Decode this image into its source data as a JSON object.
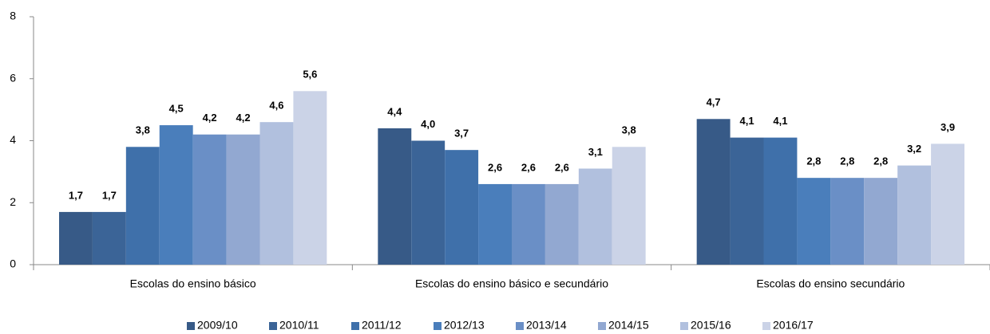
{
  "chart_data": {
    "type": "bar",
    "categories": [
      "Escolas do ensino básico",
      "Escolas do ensino básico e secundário",
      "Escolas do ensino secundário"
    ],
    "series": [
      {
        "name": "2009/10",
        "color": "#375a87",
        "values": [
          1.7,
          4.4,
          4.7
        ],
        "value_labels": [
          "1,7",
          "4,4",
          "4,7"
        ]
      },
      {
        "name": "2010/11",
        "color": "#3b6497",
        "values": [
          1.7,
          4.0,
          4.1
        ],
        "value_labels": [
          "1,7",
          "4,0",
          "4,1"
        ]
      },
      {
        "name": "2011/12",
        "color": "#3f70aa",
        "values": [
          3.8,
          3.7,
          4.1
        ],
        "value_labels": [
          "3,8",
          "3,7",
          "4,1"
        ]
      },
      {
        "name": "2012/13",
        "color": "#4a7ebb",
        "values": [
          4.5,
          2.6,
          2.8
        ],
        "value_labels": [
          "4,5",
          "2,6",
          "2,8"
        ]
      },
      {
        "name": "2013/14",
        "color": "#6a8fc6",
        "values": [
          4.2,
          2.6,
          2.8
        ],
        "value_labels": [
          "4,2",
          "2,6",
          "2,8"
        ]
      },
      {
        "name": "2014/15",
        "color": "#92a8d1",
        "values": [
          4.2,
          2.6,
          2.8
        ],
        "value_labels": [
          "4,2",
          "2,6",
          "2,8"
        ]
      },
      {
        "name": "2015/16",
        "color": "#b1c0de",
        "values": [
          4.6,
          3.1,
          3.2
        ],
        "value_labels": [
          "4,6",
          "3,1",
          "3,2"
        ]
      },
      {
        "name": "2016/17",
        "color": "#cbd3e7",
        "values": [
          5.6,
          3.8,
          3.9
        ],
        "value_labels": [
          "5,6",
          "3,8",
          "3,9"
        ]
      }
    ],
    "ylim": [
      0,
      8
    ],
    "yticks": [
      0,
      2,
      4,
      6,
      8
    ],
    "grid": false,
    "legend": "bottom"
  }
}
